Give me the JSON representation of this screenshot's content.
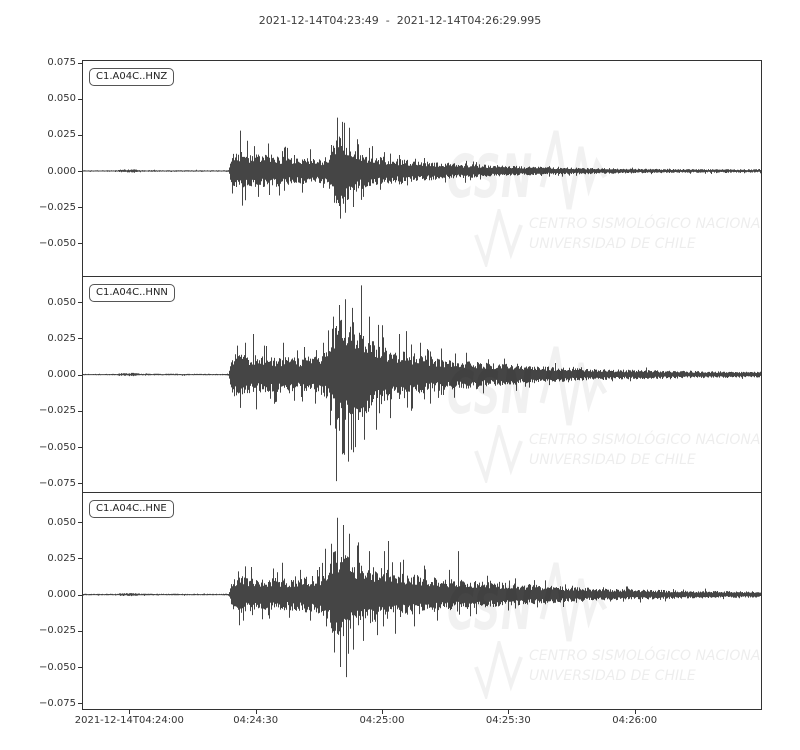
{
  "title": "2021-12-14T04:23:49  -  2021-12-14T04:26:29.995",
  "colors": {
    "trace": "#454545",
    "axis": "#333333",
    "tick_text": "#333333",
    "watermark_fill": "rgba(0,0,0,0.055)",
    "watermark_text": "rgba(0,0,0,0.07)"
  },
  "watermark": {
    "acronym": "CSN",
    "line1": "CENTRO SISMOLÓGICO NACIONAL",
    "line2": "UNIVERSIDAD DE CHILE"
  },
  "time_axis": {
    "start_label": "2021-12-14T04:23:49",
    "end_label": "2021-12-14T04:26:29.995",
    "duration_s": 161,
    "tick_offsets_s": [
      11,
      41,
      71,
      101,
      131
    ],
    "tick_labels": [
      "2021-12-14T04:24:00",
      "04:24:30",
      "04:25:00",
      "04:25:30",
      "04:26:00"
    ]
  },
  "chart_data": [
    {
      "type": "line",
      "name": "C1.A04C..HNZ",
      "seed": 11,
      "ylim": [
        -0.0728,
        0.0762
      ],
      "ytick_values": [
        0.075,
        0.05,
        0.025,
        0,
        -0.025,
        -0.05
      ],
      "ytick_labels": [
        "0.075",
        "0.050",
        "0.025",
        "0.000",
        "−0.025",
        "−0.050"
      ],
      "envelope": [
        [
          0,
          0.0005
        ],
        [
          8,
          0.0005
        ],
        [
          9,
          0.001
        ],
        [
          12,
          0.0012
        ],
        [
          14,
          0.0006
        ],
        [
          33,
          0.0005
        ],
        [
          34.6,
          0.0008
        ],
        [
          34.9,
          0.004
        ],
        [
          35.3,
          0.01
        ],
        [
          35.8,
          0.014
        ],
        [
          38,
          0.013
        ],
        [
          40,
          0.011
        ],
        [
          43,
          0.012
        ],
        [
          46,
          0.011
        ],
        [
          50,
          0.009
        ],
        [
          53,
          0.01
        ],
        [
          55,
          0.008
        ],
        [
          57,
          0.009
        ],
        [
          58.5,
          0.013
        ],
        [
          60,
          0.022
        ],
        [
          61,
          0.026
        ],
        [
          62,
          0.024
        ],
        [
          63,
          0.02
        ],
        [
          64.5,
          0.016
        ],
        [
          66,
          0.013
        ],
        [
          68,
          0.011
        ],
        [
          70,
          0.01
        ],
        [
          73,
          0.009
        ],
        [
          76,
          0.008
        ],
        [
          80,
          0.007
        ],
        [
          85,
          0.006
        ],
        [
          90,
          0.005
        ],
        [
          95,
          0.0045
        ],
        [
          100,
          0.004
        ],
        [
          107,
          0.003
        ],
        [
          115,
          0.0025
        ],
        [
          125,
          0.002
        ],
        [
          135,
          0.0015
        ],
        [
          145,
          0.0013
        ],
        [
          161,
          0.0012
        ]
      ],
      "spikes": [
        [
          37.2,
          0.028
        ],
        [
          37.8,
          -0.024
        ],
        [
          39,
          0.021
        ],
        [
          41.5,
          -0.018
        ],
        [
          44,
          0.019
        ],
        [
          46.5,
          -0.017
        ],
        [
          48.5,
          0.016
        ],
        [
          52,
          -0.015
        ],
        [
          54,
          0.015
        ],
        [
          58.8,
          0.018
        ],
        [
          59.6,
          -0.022
        ],
        [
          60.4,
          0.037
        ],
        [
          61,
          -0.033
        ],
        [
          61.6,
          0.034
        ],
        [
          62.3,
          -0.029
        ],
        [
          63.1,
          0.03
        ],
        [
          64,
          -0.025
        ],
        [
          65,
          0.022
        ],
        [
          66.5,
          -0.018
        ],
        [
          68,
          0.016
        ],
        [
          70.5,
          -0.013
        ],
        [
          73,
          0.012
        ],
        [
          77,
          -0.01
        ],
        [
          81,
          0.009
        ],
        [
          86,
          -0.008
        ],
        [
          91,
          0.007
        ]
      ]
    },
    {
      "type": "line",
      "name": "C1.A04C..HNN",
      "seed": 22,
      "ylim": [
        -0.081,
        0.0673
      ],
      "ytick_values": [
        0.05,
        0.025,
        0,
        -0.025,
        -0.05,
        -0.075
      ],
      "ytick_labels": [
        "0.050",
        "0.025",
        "0.000",
        "−0.025",
        "−0.050",
        "−0.075"
      ],
      "envelope": [
        [
          0,
          0.0005
        ],
        [
          8,
          0.0005
        ],
        [
          9,
          0.001
        ],
        [
          12,
          0.0012
        ],
        [
          14,
          0.0006
        ],
        [
          33,
          0.0005
        ],
        [
          34.6,
          0.0008
        ],
        [
          34.9,
          0.005
        ],
        [
          35.3,
          0.011
        ],
        [
          35.8,
          0.015
        ],
        [
          37,
          0.016
        ],
        [
          39,
          0.014
        ],
        [
          42,
          0.013
        ],
        [
          45,
          0.012
        ],
        [
          48,
          0.013
        ],
        [
          51,
          0.012
        ],
        [
          54,
          0.013
        ],
        [
          56,
          0.014
        ],
        [
          58,
          0.018
        ],
        [
          59,
          0.028
        ],
        [
          60,
          0.038
        ],
        [
          61,
          0.042
        ],
        [
          62,
          0.04
        ],
        [
          63,
          0.038
        ],
        [
          64,
          0.04
        ],
        [
          65,
          0.036
        ],
        [
          66,
          0.032
        ],
        [
          67,
          0.028
        ],
        [
          68.5,
          0.024
        ],
        [
          70,
          0.022
        ],
        [
          72,
          0.02
        ],
        [
          74,
          0.018
        ],
        [
          77,
          0.016
        ],
        [
          80,
          0.014
        ],
        [
          83,
          0.012
        ],
        [
          86,
          0.011
        ],
        [
          90,
          0.01
        ],
        [
          94,
          0.009
        ],
        [
          98,
          0.008
        ],
        [
          103,
          0.007
        ],
        [
          108,
          0.006
        ],
        [
          114,
          0.005
        ],
        [
          120,
          0.004
        ],
        [
          128,
          0.0035
        ],
        [
          136,
          0.003
        ],
        [
          145,
          0.0025
        ],
        [
          161,
          0.002
        ]
      ],
      "spikes": [
        [
          36.5,
          0.02
        ],
        [
          37.3,
          -0.023
        ],
        [
          38.5,
          0.022
        ],
        [
          40.3,
          0.028
        ],
        [
          41,
          -0.024
        ],
        [
          43,
          0.02
        ],
        [
          45.5,
          -0.019
        ],
        [
          47.5,
          0.022
        ],
        [
          50,
          -0.018
        ],
        [
          52.5,
          0.019
        ],
        [
          55,
          -0.02
        ],
        [
          57,
          0.022
        ],
        [
          58.7,
          -0.035
        ],
        [
          59.4,
          0.04
        ],
        [
          60.1,
          -0.0735
        ],
        [
          60.8,
          0.048
        ],
        [
          61.5,
          -0.055
        ],
        [
          62.2,
          0.052
        ],
        [
          63,
          -0.06
        ],
        [
          63.8,
          0.046
        ],
        [
          64.6,
          -0.05
        ],
        [
          65.9,
          0.0615
        ],
        [
          66.8,
          -0.045
        ],
        [
          68,
          0.04
        ],
        [
          69.5,
          -0.038
        ],
        [
          71,
          0.034
        ],
        [
          73,
          -0.03
        ],
        [
          75,
          0.028
        ],
        [
          76.6,
          0.03
        ],
        [
          78,
          -0.025
        ],
        [
          80,
          0.022
        ],
        [
          82.5,
          -0.02
        ],
        [
          85,
          0.018
        ],
        [
          88,
          -0.016
        ],
        [
          91,
          0.015
        ],
        [
          95,
          -0.013
        ],
        [
          100,
          0.011
        ],
        [
          106,
          -0.009
        ],
        [
          112,
          0.008
        ]
      ]
    },
    {
      "type": "line",
      "name": "C1.A04C..HNE",
      "seed": 33,
      "ylim": [
        -0.079,
        0.0701
      ],
      "ytick_values": [
        0.05,
        0.025,
        0,
        -0.025,
        -0.05,
        -0.075
      ],
      "ytick_labels": [
        "0.050",
        "0.025",
        "0.000",
        "−0.025",
        "−0.050",
        "−0.075"
      ],
      "envelope": [
        [
          0,
          0.0005
        ],
        [
          8,
          0.0005
        ],
        [
          9,
          0.001
        ],
        [
          12,
          0.0012
        ],
        [
          14,
          0.0006
        ],
        [
          33,
          0.0005
        ],
        [
          34.6,
          0.0008
        ],
        [
          34.9,
          0.004
        ],
        [
          35.3,
          0.009
        ],
        [
          35.8,
          0.012
        ],
        [
          37,
          0.013
        ],
        [
          40,
          0.012
        ],
        [
          43,
          0.011
        ],
        [
          46,
          0.012
        ],
        [
          49,
          0.011
        ],
        [
          52,
          0.012
        ],
        [
          55,
          0.013
        ],
        [
          57,
          0.015
        ],
        [
          58.5,
          0.022
        ],
        [
          59.5,
          0.03
        ],
        [
          60.5,
          0.034
        ],
        [
          61.5,
          0.032
        ],
        [
          62.5,
          0.03
        ],
        [
          63.5,
          0.026
        ],
        [
          65,
          0.023
        ],
        [
          67,
          0.021
        ],
        [
          69,
          0.019
        ],
        [
          71,
          0.018
        ],
        [
          74,
          0.016
        ],
        [
          77,
          0.015
        ],
        [
          80,
          0.014
        ],
        [
          84,
          0.012
        ],
        [
          88,
          0.011
        ],
        [
          92,
          0.01
        ],
        [
          96,
          0.009
        ],
        [
          101,
          0.008
        ],
        [
          106,
          0.007
        ],
        [
          112,
          0.006
        ],
        [
          118,
          0.005
        ],
        [
          125,
          0.004
        ],
        [
          133,
          0.0035
        ],
        [
          141,
          0.003
        ],
        [
          150,
          0.0025
        ],
        [
          161,
          0.0022
        ]
      ],
      "spikes": [
        [
          36.8,
          0.016
        ],
        [
          38,
          -0.018
        ],
        [
          40,
          0.019
        ],
        [
          42.5,
          -0.017
        ],
        [
          45,
          0.018
        ],
        [
          47.3,
          0.022
        ],
        [
          49,
          -0.016
        ],
        [
          51.5,
          0.017
        ],
        [
          54,
          -0.018
        ],
        [
          56,
          0.019
        ],
        [
          57.8,
          -0.022
        ],
        [
          58.9,
          0.035
        ],
        [
          59.6,
          -0.04
        ],
        [
          60.3,
          0.053
        ],
        [
          61,
          -0.05
        ],
        [
          61.7,
          0.048
        ],
        [
          62.4,
          -0.057
        ],
        [
          63.2,
          0.042
        ],
        [
          64,
          -0.038
        ],
        [
          65.2,
          0.036
        ],
        [
          66.5,
          -0.032
        ],
        [
          68,
          0.03
        ],
        [
          69.8,
          -0.028
        ],
        [
          71.5,
          0.03
        ],
        [
          72.4,
          0.037
        ],
        [
          74,
          -0.027
        ],
        [
          76,
          0.024
        ],
        [
          78.5,
          -0.022
        ],
        [
          81,
          0.02
        ],
        [
          84,
          -0.018
        ],
        [
          87,
          0.017
        ],
        [
          89,
          0.03
        ],
        [
          92,
          -0.015
        ],
        [
          96,
          0.013
        ],
        [
          101,
          -0.011
        ],
        [
          107,
          0.01
        ],
        [
          114,
          -0.008
        ]
      ]
    }
  ]
}
